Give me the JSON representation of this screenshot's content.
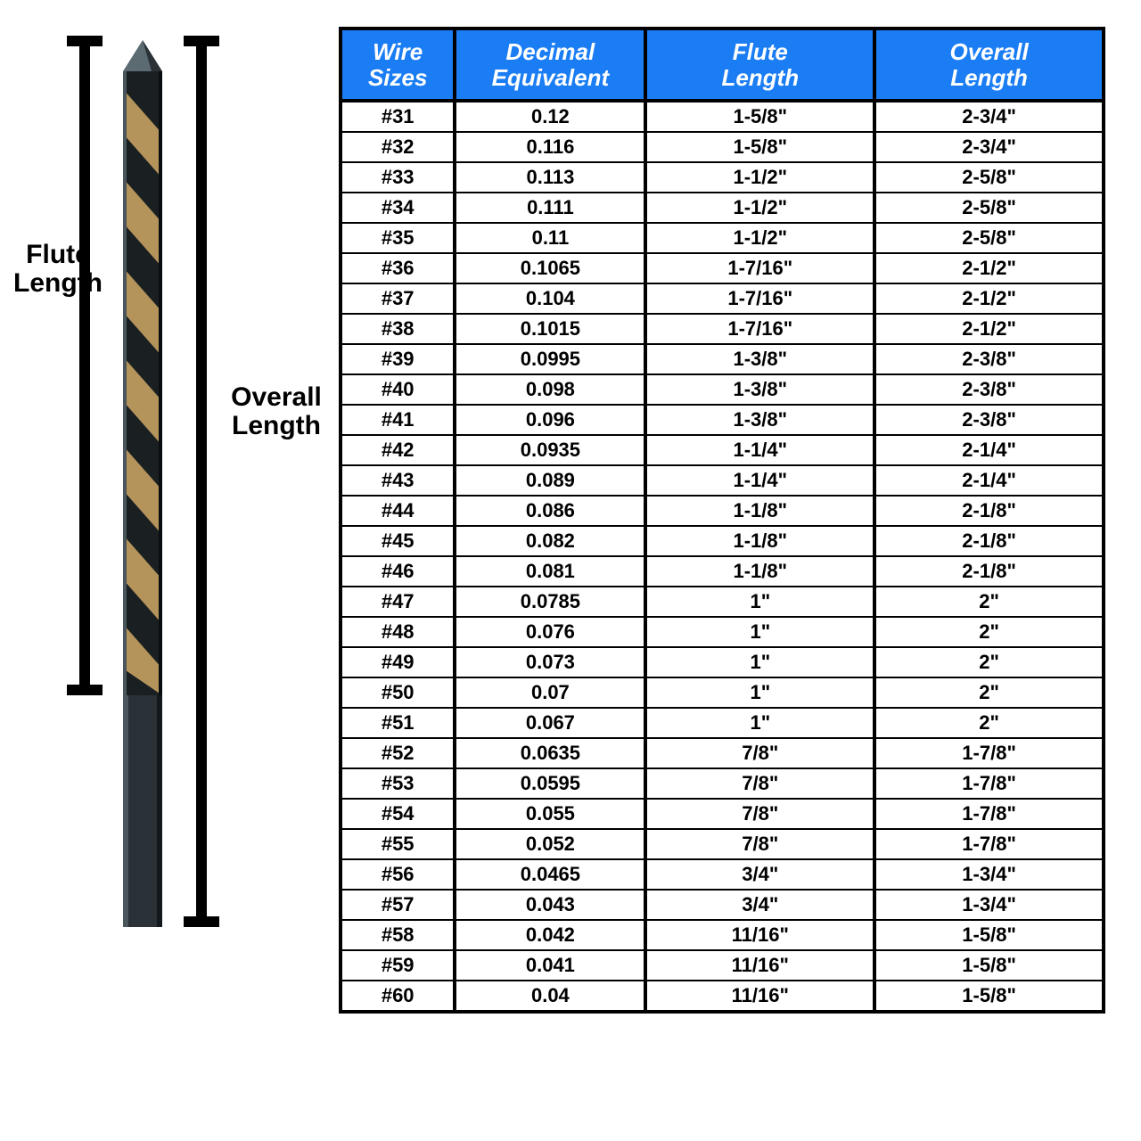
{
  "diagram": {
    "flute_label_line1": "Flute",
    "flute_label_line2": "Length",
    "overall_label_line1": "Overall",
    "overall_label_line2": "Length",
    "drill_colors": {
      "shank": "#2a3238",
      "flute_dark": "#1a1f22",
      "flute_gold": "#b4945b",
      "highlight": "#d8dbdd"
    },
    "bracket_color": "#000000"
  },
  "table": {
    "header_bg": "#1a7df4",
    "header_fg": "#ffffff",
    "border_color": "#000000",
    "font_family": "Arial Black",
    "header_font_style": "italic",
    "header_font_weight": 700,
    "cell_font_weight": 900,
    "header_fontsize_pt": 20,
    "cell_fontsize_pt": 16,
    "columns": [
      {
        "key": "wire",
        "line1": "Wire",
        "line2": "Sizes",
        "width_pct": 15
      },
      {
        "key": "decimal",
        "line1": "Decimal",
        "line2": "Equivalent",
        "width_pct": 25
      },
      {
        "key": "flute",
        "line1": "Flute",
        "line2": "Length",
        "width_pct": 30
      },
      {
        "key": "overall",
        "line1": "Overall",
        "line2": "Length",
        "width_pct": 30
      }
    ],
    "rows": [
      {
        "wire": "#31",
        "decimal": "0.12",
        "flute": "1-5/8\"",
        "overall": "2-3/4\""
      },
      {
        "wire": "#32",
        "decimal": "0.116",
        "flute": "1-5/8\"",
        "overall": "2-3/4\""
      },
      {
        "wire": "#33",
        "decimal": "0.113",
        "flute": "1-1/2\"",
        "overall": "2-5/8\""
      },
      {
        "wire": "#34",
        "decimal": "0.111",
        "flute": "1-1/2\"",
        "overall": "2-5/8\""
      },
      {
        "wire": "#35",
        "decimal": "0.11",
        "flute": "1-1/2\"",
        "overall": "2-5/8\""
      },
      {
        "wire": "#36",
        "decimal": "0.1065",
        "flute": "1-7/16\"",
        "overall": "2-1/2\""
      },
      {
        "wire": "#37",
        "decimal": "0.104",
        "flute": "1-7/16\"",
        "overall": "2-1/2\""
      },
      {
        "wire": "#38",
        "decimal": "0.1015",
        "flute": "1-7/16\"",
        "overall": "2-1/2\""
      },
      {
        "wire": "#39",
        "decimal": "0.0995",
        "flute": "1-3/8\"",
        "overall": "2-3/8\""
      },
      {
        "wire": "#40",
        "decimal": "0.098",
        "flute": "1-3/8\"",
        "overall": "2-3/8\""
      },
      {
        "wire": "#41",
        "decimal": "0.096",
        "flute": "1-3/8\"",
        "overall": "2-3/8\""
      },
      {
        "wire": "#42",
        "decimal": "0.0935",
        "flute": "1-1/4\"",
        "overall": "2-1/4\""
      },
      {
        "wire": "#43",
        "decimal": "0.089",
        "flute": "1-1/4\"",
        "overall": "2-1/4\""
      },
      {
        "wire": "#44",
        "decimal": "0.086",
        "flute": "1-1/8\"",
        "overall": "2-1/8\""
      },
      {
        "wire": "#45",
        "decimal": "0.082",
        "flute": "1-1/8\"",
        "overall": "2-1/8\""
      },
      {
        "wire": "#46",
        "decimal": "0.081",
        "flute": "1-1/8\"",
        "overall": "2-1/8\""
      },
      {
        "wire": "#47",
        "decimal": "0.0785",
        "flute": "1\"",
        "overall": "2\""
      },
      {
        "wire": "#48",
        "decimal": "0.076",
        "flute": "1\"",
        "overall": "2\""
      },
      {
        "wire": "#49",
        "decimal": "0.073",
        "flute": "1\"",
        "overall": "2\""
      },
      {
        "wire": "#50",
        "decimal": "0.07",
        "flute": "1\"",
        "overall": "2\""
      },
      {
        "wire": "#51",
        "decimal": "0.067",
        "flute": "1\"",
        "overall": "2\""
      },
      {
        "wire": "#52",
        "decimal": "0.0635",
        "flute": "7/8\"",
        "overall": "1-7/8\""
      },
      {
        "wire": "#53",
        "decimal": "0.0595",
        "flute": "7/8\"",
        "overall": "1-7/8\""
      },
      {
        "wire": "#54",
        "decimal": "0.055",
        "flute": "7/8\"",
        "overall": "1-7/8\""
      },
      {
        "wire": "#55",
        "decimal": "0.052",
        "flute": "7/8\"",
        "overall": "1-7/8\""
      },
      {
        "wire": "#56",
        "decimal": "0.0465",
        "flute": "3/4\"",
        "overall": "1-3/4\""
      },
      {
        "wire": "#57",
        "decimal": "0.043",
        "flute": "3/4\"",
        "overall": "1-3/4\""
      },
      {
        "wire": "#58",
        "decimal": "0.042",
        "flute": "11/16\"",
        "overall": "1-5/8\""
      },
      {
        "wire": "#59",
        "decimal": "0.041",
        "flute": "11/16\"",
        "overall": "1-5/8\""
      },
      {
        "wire": "#60",
        "decimal": "0.04",
        "flute": "11/16\"",
        "overall": "1-5/8\""
      }
    ]
  }
}
